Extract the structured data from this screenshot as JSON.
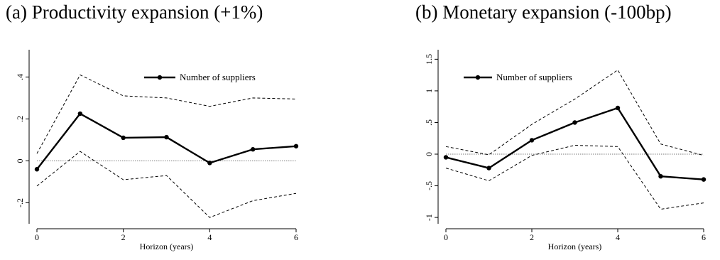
{
  "chart_data": [
    {
      "type": "line",
      "title": "(a) Productivity expansion (+1%)",
      "xlabel": "Horizon (years)",
      "ylabel": "",
      "x": [
        0,
        1,
        2,
        3,
        4,
        5,
        6
      ],
      "xticks": [
        "0",
        "2",
        "4",
        "6"
      ],
      "yticks": [
        "-.2",
        "0",
        ".2",
        ".4"
      ],
      "xlim": [
        0,
        6
      ],
      "ylim": [
        -0.3,
        0.53
      ],
      "zero_line": 0,
      "legend": "top-right",
      "series": [
        {
          "name": "Number of suppliers",
          "role": "estimate",
          "values": [
            -0.04,
            0.225,
            0.11,
            0.113,
            -0.01,
            0.055,
            0.07
          ]
        },
        {
          "role": "upper",
          "values": [
            0.035,
            0.41,
            0.31,
            0.3,
            0.26,
            0.3,
            0.295
          ]
        },
        {
          "role": "lower",
          "values": [
            -0.12,
            0.045,
            -0.09,
            -0.07,
            -0.27,
            -0.19,
            -0.155
          ]
        }
      ]
    },
    {
      "type": "line",
      "title": "(b) Monetary expansion (-100bp)",
      "xlabel": "Horizon (years)",
      "ylabel": "",
      "x": [
        0,
        1,
        2,
        3,
        4,
        5,
        6
      ],
      "xticks": [
        "0",
        "2",
        "4",
        "6"
      ],
      "yticks": [
        "-1",
        "-.5",
        "0",
        ".5",
        "1",
        "1.5"
      ],
      "xlim": [
        0,
        6
      ],
      "ylim": [
        -1.1,
        1.65
      ],
      "zero_line": 0,
      "legend": "top-left",
      "series": [
        {
          "name": "Number of suppliers",
          "role": "estimate",
          "values": [
            -0.05,
            -0.22,
            0.22,
            0.5,
            0.73,
            -0.35,
            -0.4
          ]
        },
        {
          "role": "upper",
          "values": [
            0.12,
            -0.01,
            0.47,
            0.87,
            1.33,
            0.16,
            -0.02
          ]
        },
        {
          "role": "lower",
          "values": [
            -0.22,
            -0.42,
            -0.02,
            0.14,
            0.12,
            -0.87,
            -0.77
          ]
        }
      ]
    }
  ]
}
